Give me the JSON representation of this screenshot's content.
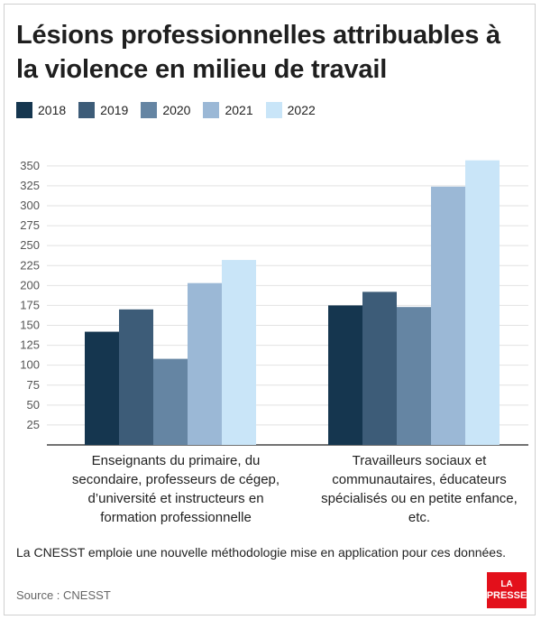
{
  "title": "Lésions professionnelles attribuables à la violence en milieu de travail",
  "note": "La CNESST emploie une nouvelle méthodologie mise en application pour ces données.",
  "source": "Source : CNESST",
  "logo": {
    "line1": "LA",
    "line2": "PRESSE"
  },
  "chart_data": {
    "type": "bar",
    "title": "Lésions professionnelles attribuables à la violence en milieu de travail",
    "categories": [
      "Enseignants du primaire, du secondaire, professeurs de cégep, d’université et instructeurs en formation professionnelle",
      "Travailleurs sociaux et communautaires, éducateurs spécialisés ou en petite enfance, etc."
    ],
    "category_lines": [
      [
        "Enseignants du primaire, du",
        "secondaire, professeurs de cégep,",
        "d’université et instructeurs en",
        "formation professionnelle"
      ],
      [
        "Travailleurs sociaux et",
        "communautaires, éducateurs",
        "spécialisés ou en petite enfance,",
        "etc."
      ]
    ],
    "series": [
      {
        "name": "2018",
        "color": "#15364f",
        "values": [
          142,
          175
        ]
      },
      {
        "name": "2019",
        "color": "#3d5c78",
        "values": [
          170,
          192
        ]
      },
      {
        "name": "2020",
        "color": "#6585a3",
        "values": [
          108,
          173
        ]
      },
      {
        "name": "2021",
        "color": "#9bb8d6",
        "values": [
          203,
          324
        ]
      },
      {
        "name": "2022",
        "color": "#c9e5f8",
        "values": [
          232,
          357
        ]
      }
    ],
    "yticks": [
      25,
      50,
      75,
      100,
      125,
      150,
      175,
      200,
      225,
      250,
      275,
      300,
      325,
      350
    ],
    "ylim": [
      0,
      360
    ],
    "grid": true,
    "legend": "top-left"
  }
}
